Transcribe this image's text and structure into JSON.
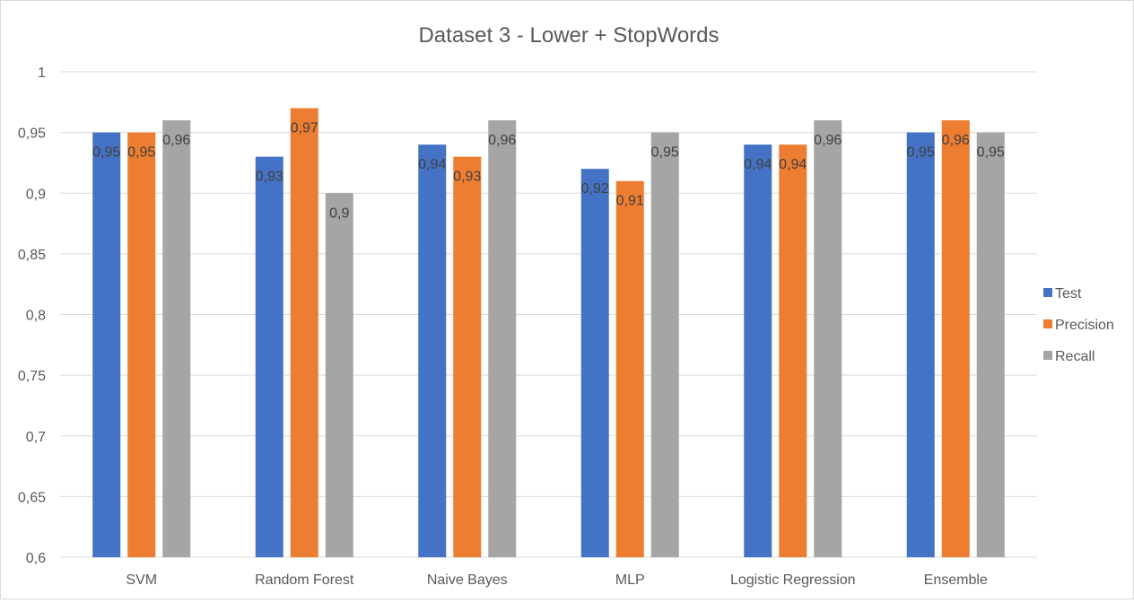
{
  "chart_data": {
    "type": "bar",
    "title": "Dataset 3 - Lower + StopWords",
    "xlabel": "",
    "ylabel": "",
    "categories": [
      "SVM",
      "Random Forest",
      "Naive Bayes",
      "MLP",
      "Logistic Regression",
      "Ensemble"
    ],
    "series": [
      {
        "name": "Test",
        "color": "#4472C4",
        "values": [
          0.95,
          0.93,
          0.94,
          0.92,
          0.94,
          0.95
        ],
        "labels": [
          "0,95",
          "0,93",
          "0,94",
          "0,92",
          "0,94",
          "0,95"
        ]
      },
      {
        "name": "Precision",
        "color": "#ED7D31",
        "values": [
          0.95,
          0.97,
          0.93,
          0.91,
          0.94,
          0.96
        ],
        "labels": [
          "0,95",
          "0,97",
          "0,93",
          "0,91",
          "0,94",
          "0,96"
        ]
      },
      {
        "name": "Recall",
        "color": "#A5A5A5",
        "values": [
          0.96,
          0.9,
          0.96,
          0.95,
          0.96,
          0.95
        ],
        "labels": [
          "0,96",
          "0,9",
          "0,96",
          "0,95",
          "0,96",
          "0,95"
        ]
      }
    ],
    "ylim": [
      0.6,
      1.0
    ],
    "yticks": [
      0.6,
      0.65,
      0.7,
      0.75,
      0.8,
      0.85,
      0.9,
      0.95,
      1.0
    ],
    "ytick_labels": [
      "0,6",
      "0,65",
      "0,7",
      "0,75",
      "0,8",
      "0,85",
      "0,9",
      "0,95",
      "1"
    ],
    "grid": true,
    "legend_position": "right"
  }
}
